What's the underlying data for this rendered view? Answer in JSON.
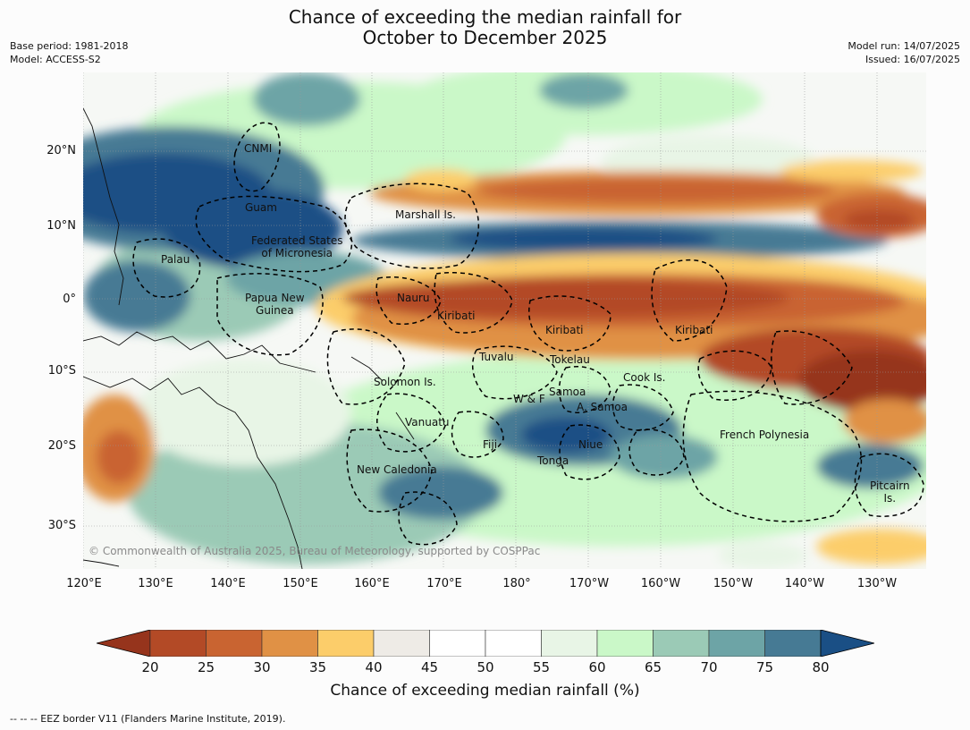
{
  "title_line1": "Chance of exceeding the median rainfall for",
  "title_line2": "October to December 2025",
  "meta_left": [
    "Base period: 1981-2018",
    "Model: ACCESS-S2"
  ],
  "meta_right": [
    "Model run: 14/07/2025",
    "Issued: 16/07/2025"
  ],
  "lat_labels": [
    "20°N",
    "10°N",
    "0°",
    "10°S",
    "20°S",
    "30°S"
  ],
  "lon_labels": [
    "120°E",
    "130°E",
    "140°E",
    "150°E",
    "160°E",
    "170°E",
    "180°",
    "170°W",
    "160°W",
    "150°W",
    "140°W",
    "130°W"
  ],
  "region_labels": [
    "CNMI",
    "Guam",
    "Marshall Is.",
    "Federated States\nof Micronesia",
    "Palau",
    "Papua New\nGuinea",
    "Nauru",
    "Kiribati",
    "Kiribati",
    "Kiribati",
    "Tuvalu",
    "Tokelau",
    "Solomon Is.",
    "Cook Is.",
    "Samoa",
    "W & F",
    "A. Samoa",
    "Vanuatu",
    "Fiji",
    "Niue",
    "French Polynesia",
    "Tonga",
    "New Caledonia",
    "Pitcairn\nIs."
  ],
  "copyright": "© Commonwealth of Australia 2025, Bureau of Meteorology, supported by COSPPac",
  "colorbar": {
    "ticks": [
      "20",
      "25",
      "30",
      "35",
      "40",
      "45",
      "50",
      "55",
      "60",
      "65",
      "70",
      "75",
      "80"
    ],
    "colors": [
      "#b34a26",
      "#c96431",
      "#e09145",
      "#fccd6a",
      "#eeebe6",
      "#ffffff",
      "#ffffff",
      "#e8f5e6",
      "#caf8c8",
      "#9bcab6",
      "#6da4a6",
      "#467a94"
    ],
    "under_color": "#96341c",
    "over_color": "#1a4f85",
    "label": "Chance of exceeding median rainfall (%)"
  },
  "footnote": "--  --  -- EEZ border V11 (Flanders Marine Institute, 2019)."
}
